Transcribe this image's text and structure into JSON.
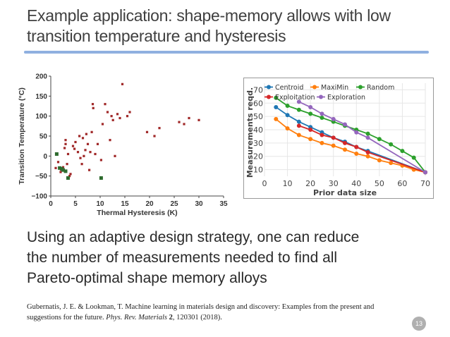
{
  "slide": {
    "title_line1": "Example application: shape-memory allows with low",
    "title_line2": "transition temperature and hysteresis",
    "body_line1": "Using an adaptive design strategy, one can reduce",
    "body_line2": "the number of measurements needed to find all",
    "body_line3": "Pareto-optimal shape memory alloys",
    "ref_line1": "Gubernatis, J. E. & Lookman, T. Machine learning in materials design and discovery: Examples from the present and",
    "ref_pre": "suggestions for the future. ",
    "ref_journal": "Phys. Rev. Materials",
    "ref_vol": " 2",
    "ref_post": ", 120301 (2018).",
    "page_number": "13"
  },
  "chart_data": [
    {
      "type": "scatter",
      "xlabel": "Thermal Hysteresis (K)",
      "ylabel": "Transition Temperature (°C)",
      "xlim": [
        0,
        35
      ],
      "ylim": [
        -100,
        200
      ],
      "xticks": [
        "0",
        "5",
        "10",
        "15",
        "20",
        "25",
        "30",
        "35"
      ],
      "yticks": [
        "200",
        "150",
        "100",
        "50",
        "0",
        "−50",
        "−100"
      ],
      "colors": {
        "points": "#a02828",
        "pareto": "#2e6b2e"
      },
      "series": [
        {
          "role": "points",
          "points": [
            [
              1,
              -30
            ],
            [
              1.5,
              -15
            ],
            [
              2,
              -40
            ],
            [
              2.3,
              -35
            ],
            [
              2.5,
              -28
            ],
            [
              2.8,
              20
            ],
            [
              3,
              30
            ],
            [
              3,
              40
            ],
            [
              3.3,
              -20
            ],
            [
              3.5,
              5
            ],
            [
              3.8,
              -50
            ],
            [
              4,
              -45
            ],
            [
              4.5,
              25
            ],
            [
              4.8,
              18
            ],
            [
              5,
              35
            ],
            [
              5.5,
              10
            ],
            [
              5.8,
              50
            ],
            [
              6,
              -5
            ],
            [
              6.3,
              -20
            ],
            [
              6.5,
              45
            ],
            [
              6.7,
              0
            ],
            [
              7,
              15
            ],
            [
              7.2,
              55
            ],
            [
              7.5,
              30
            ],
            [
              7.8,
              -35
            ],
            [
              8,
              10
            ],
            [
              8.3,
              60
            ],
            [
              8.5,
              130
            ],
            [
              8.6,
              120
            ],
            [
              9,
              5
            ],
            [
              9.5,
              30
            ],
            [
              10.2,
              -10
            ],
            [
              10.5,
              80
            ],
            [
              11,
              130
            ],
            [
              11.5,
              110
            ],
            [
              12,
              40
            ],
            [
              12.3,
              100
            ],
            [
              12.6,
              90
            ],
            [
              13,
              0
            ],
            [
              13.5,
              105
            ],
            [
              14,
              95
            ],
            [
              14.5,
              180
            ],
            [
              15.5,
              100
            ],
            [
              16,
              110
            ],
            [
              19.5,
              60
            ],
            [
              21,
              50
            ],
            [
              22,
              70
            ],
            [
              26,
              85
            ],
            [
              27,
              80
            ],
            [
              28,
              95
            ],
            [
              30,
              90
            ]
          ]
        },
        {
          "role": "pareto",
          "points": [
            [
              1.2,
              5
            ],
            [
              1.8,
              -30
            ],
            [
              2.2,
              -32
            ],
            [
              2.5,
              -35
            ],
            [
              3,
              -38
            ],
            [
              3.5,
              -55
            ],
            [
              10.2,
              -55
            ]
          ]
        }
      ]
    },
    {
      "type": "line",
      "xlabel": "Prior data size",
      "ylabel": "Measurements reqd.",
      "xlim": [
        0,
        70
      ],
      "ylim": [
        5,
        75
      ],
      "xticks": [
        0,
        10,
        20,
        30,
        40,
        50,
        60,
        70
      ],
      "yticks": [
        10,
        20,
        30,
        40,
        50,
        60,
        70
      ],
      "legend": "top",
      "series": [
        {
          "name": "Centroid",
          "color": "#1f77b4",
          "x": [
            5,
            10,
            15,
            20,
            25,
            30,
            35,
            40,
            45,
            70
          ],
          "y": [
            57,
            51,
            46,
            42,
            38,
            34,
            31,
            27,
            24,
            8
          ]
        },
        {
          "name": "MaxiMin",
          "color": "#ff7f0e",
          "x": [
            5,
            10,
            15,
            20,
            25,
            30,
            35,
            40,
            45,
            50,
            55,
            60,
            65,
            70
          ],
          "y": [
            48,
            41,
            36,
            33,
            30,
            28,
            25,
            22,
            20,
            17,
            15,
            13,
            10,
            8
          ]
        },
        {
          "name": "Random",
          "color": "#2ca02c",
          "x": [
            5,
            10,
            15,
            20,
            25,
            30,
            35,
            40,
            45,
            50,
            55,
            60,
            65,
            70
          ],
          "y": [
            64,
            58,
            55,
            52,
            49,
            46,
            43,
            40,
            37,
            33,
            29,
            24,
            19,
            8
          ]
        },
        {
          "name": "Exploitation",
          "color": "#d62728",
          "x": [
            15,
            20,
            25,
            30,
            35,
            40,
            45,
            70
          ],
          "y": [
            43,
            40,
            36,
            34,
            30,
            27,
            23,
            8
          ]
        },
        {
          "name": "Exploration",
          "color": "#9467bd",
          "x": [
            15,
            20,
            25,
            30,
            35,
            40,
            45,
            70
          ],
          "y": [
            61,
            57,
            52,
            48,
            44,
            38,
            34,
            8
          ]
        }
      ]
    }
  ]
}
